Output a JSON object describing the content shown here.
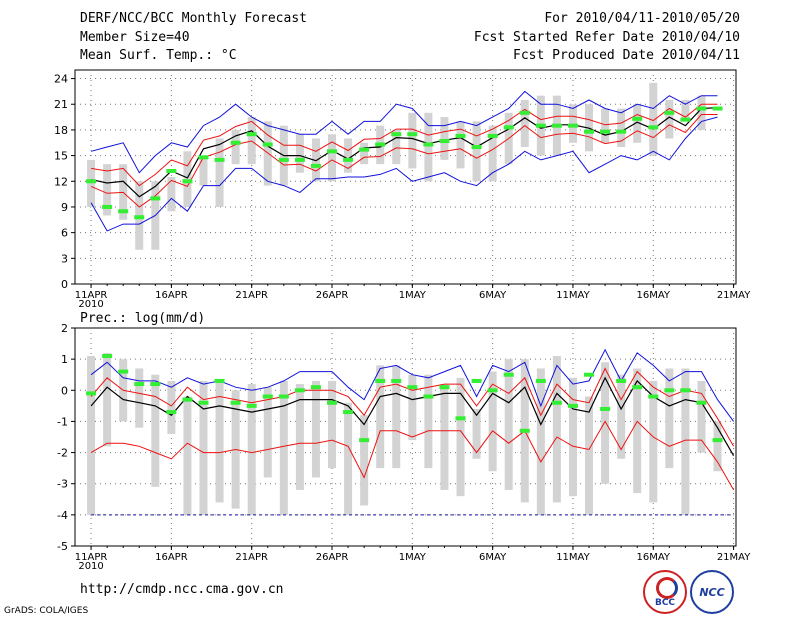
{
  "header": {
    "title": "DERF/NCC/BCC Monthly Forecast",
    "member_size": "Member Size=40",
    "variable": "Mean Surf. Temp.: °C",
    "forecast_period": "For 2010/04/11-2010/05/20",
    "fcst_started": "Fcst Started Refer Date 2010/04/10",
    "fcst_produced": "Fcst Produced Date 2010/04/11"
  },
  "footer": {
    "url": "http://cmdp.ncc.cma.gov.cn",
    "grads": "GrADS: COLA/IGES",
    "logo_bcc": "BCC",
    "logo_ncc": "NCC"
  },
  "colors": {
    "box": "#d3d3d3",
    "mean": "#000000",
    "inner": "#ee1111",
    "outer": "#1111dd",
    "obs": "#33ee33",
    "bottom_line": "#1111aa"
  },
  "chart_data": [
    {
      "type": "line",
      "title": "Mean Surf. Temp.: °C",
      "ylim": [
        0,
        25
      ],
      "yticks": [
        0,
        3,
        6,
        9,
        12,
        15,
        18,
        21,
        24
      ],
      "x_start_day": 0,
      "x_end_day": 40,
      "xtick_days": [
        0,
        5,
        10,
        15,
        20,
        25,
        30,
        35,
        40
      ],
      "xtick_labels": [
        "11APR",
        "16APR",
        "21APR",
        "26APR",
        "1MAY",
        "6MAY",
        "11MAY",
        "16MAY",
        "21MAY"
      ],
      "year_label": "2010",
      "series": {
        "box_top": [
          14.5,
          14,
          14,
          12,
          12,
          12.5,
          15.5,
          15,
          17,
          18,
          19.5,
          19,
          18.5,
          17.5,
          17,
          17.5,
          17,
          16.5,
          18.5,
          18,
          20,
          20,
          19.5,
          19,
          19,
          18.5,
          20,
          21.5,
          22,
          22,
          21,
          21,
          20.5,
          20.5,
          21,
          23.5,
          21.5,
          21.5,
          22
        ],
        "box_bottom": [
          9,
          8,
          7.5,
          4,
          4,
          8.5,
          9,
          11.5,
          9,
          14,
          14,
          11.5,
          11.5,
          13,
          12,
          12,
          13,
          14,
          14,
          14,
          13.5,
          12,
          14.5,
          13.5,
          12,
          12,
          14,
          16,
          15,
          15,
          16.5,
          15.5,
          16.5,
          16,
          16.5,
          15,
          17,
          19,
          18
        ],
        "mean": [
          12.2,
          11.8,
          12,
          10.2,
          11.4,
          13.2,
          12.4,
          15.8,
          16.3,
          17.3,
          17.9,
          16.1,
          15,
          15,
          14.4,
          15.6,
          14.6,
          15.9,
          16,
          17.1,
          17,
          16.4,
          16.8,
          17.1,
          16,
          17.1,
          18.1,
          19.4,
          18.2,
          18.6,
          18.6,
          18.2,
          17.4,
          17.8,
          18.9,
          18.1,
          19.5,
          18.5,
          20.5,
          20.6
        ],
        "inner_up": [
          13.5,
          13.2,
          13.5,
          11.5,
          12.8,
          14.5,
          13.8,
          16.8,
          17.3,
          18.4,
          19,
          17.4,
          16.2,
          16.2,
          15.5,
          16.6,
          15.6,
          16.9,
          17,
          18.1,
          18.1,
          17.4,
          17.8,
          18.1,
          17.3,
          18.1,
          19.1,
          20.4,
          19.2,
          19.6,
          19.6,
          19.2,
          18.6,
          18.8,
          19.8,
          19.1,
          20.5,
          19.5,
          21,
          21
        ],
        "inner_lo": [
          11.4,
          10.6,
          10.7,
          9,
          10.3,
          12.1,
          11.4,
          14.8,
          15.4,
          16.3,
          16.7,
          15.3,
          13.9,
          14,
          13.2,
          14.5,
          13.5,
          14.8,
          14.9,
          15.9,
          15.8,
          15.2,
          15.5,
          15.8,
          14.7,
          15.7,
          17,
          18.5,
          17.1,
          17.5,
          17.6,
          17.2,
          16.4,
          16.7,
          17.9,
          17.1,
          18.6,
          17.7,
          19.8,
          19.8
        ],
        "outer_up": [
          15.5,
          16,
          16.5,
          13,
          15,
          16.5,
          16,
          18.5,
          19.5,
          21,
          19.5,
          18.5,
          18,
          17.5,
          17.5,
          19,
          17.5,
          19,
          19,
          21,
          20.5,
          18.5,
          18.5,
          19,
          18.5,
          19.5,
          20.5,
          22.5,
          21,
          21,
          20.5,
          21.5,
          20.5,
          20,
          21,
          20.5,
          22,
          21,
          22,
          22
        ],
        "outer_lo": [
          9.5,
          6.2,
          7,
          7,
          8,
          10,
          8.5,
          11.5,
          11.5,
          13.5,
          13.5,
          12,
          11.5,
          10.7,
          12.3,
          12.3,
          12.5,
          12.5,
          12.8,
          13.5,
          12,
          12.5,
          13,
          12,
          11.5,
          13,
          14,
          15.5,
          14.5,
          15,
          15.5,
          13,
          14,
          15,
          14.5,
          15.5,
          14.5,
          17,
          19,
          19.5
        ],
        "obs": [
          12,
          9,
          8.5,
          7.8,
          10,
          13.2,
          12,
          14.8,
          14.5,
          16.5,
          17.5,
          16.3,
          14.5,
          14.5,
          13.8,
          15.5,
          14.5,
          15.7,
          16.3,
          17.5,
          17.5,
          16.3,
          16.7,
          17.3,
          16,
          17.3,
          18.3,
          20,
          18.5,
          18.5,
          18.5,
          17.8,
          17.8,
          17.8,
          19.3,
          18.3,
          20,
          19.2,
          20.5,
          20.5
        ]
      }
    },
    {
      "type": "line",
      "title": "Prec.: log(mm/d)",
      "ylim": [
        -5,
        2
      ],
      "yticks": [
        -5,
        -4,
        -3,
        -2,
        -1,
        0,
        1,
        2
      ],
      "x_start_day": 0,
      "x_end_day": 40,
      "xtick_days": [
        0,
        5,
        10,
        15,
        20,
        25,
        30,
        35,
        40
      ],
      "xtick_labels": [
        "11APR",
        "16APR",
        "21APR",
        "26APR",
        "1MAY",
        "6MAY",
        "11MAY",
        "16MAY",
        "21MAY"
      ],
      "year_label": "2010",
      "bottom_line": -4,
      "series": {
        "box_top": [
          1.1,
          1.2,
          1,
          0.7,
          0.5,
          0.3,
          -0.2,
          0.3,
          0.3,
          0,
          0.2,
          0.1,
          0.3,
          0.2,
          0.3,
          0.3,
          -0.4,
          -0.8,
          0.8,
          0.8,
          0.5,
          0.5,
          0.2,
          0.4,
          -0.6,
          0.6,
          1,
          1,
          0.7,
          1.1,
          0.4,
          -0.2,
          0.9,
          0.5,
          0.7,
          0.3,
          0.7,
          0.7,
          0.3,
          -1
        ],
        "box_bottom": [
          -4,
          -1.8,
          -1,
          -1.2,
          -3.1,
          -1.4,
          -4,
          -4,
          -3.6,
          -3.8,
          -4,
          -2.8,
          -4,
          -3.2,
          -2.8,
          -2.5,
          -4,
          -3.7,
          -2.5,
          -2.5,
          -1.6,
          -2.5,
          -3.2,
          -3.4,
          -2.2,
          -2.6,
          -3.2,
          -3.6,
          -4,
          -3.6,
          -3.4,
          -4,
          -3,
          -2.2,
          -3.3,
          -3.6,
          -2.5,
          -4,
          -2,
          -2.6
        ],
        "mean": [
          -0.5,
          0.1,
          -0.3,
          -0.4,
          -0.5,
          -0.8,
          -0.2,
          -0.6,
          -0.5,
          -0.6,
          -0.7,
          -0.6,
          -0.5,
          -0.3,
          -0.3,
          -0.3,
          -0.5,
          -1.1,
          -0.2,
          -0.1,
          -0.3,
          -0.2,
          -0.1,
          -0.1,
          -0.8,
          -0.1,
          -0.4,
          0.1,
          -1.1,
          -0.1,
          -0.6,
          -0.7,
          0.4,
          -0.6,
          0.3,
          -0.2,
          -0.5,
          -0.3,
          -0.4,
          -1.2,
          -2.1
        ],
        "inner_up": [
          -0.2,
          0.4,
          0,
          -0.1,
          -0.2,
          -0.5,
          0.1,
          -0.3,
          -0.2,
          -0.3,
          -0.4,
          -0.3,
          -0.2,
          0,
          0,
          0,
          -0.2,
          -0.8,
          0.1,
          0.2,
          0,
          0.1,
          0.2,
          0.2,
          -0.5,
          0.2,
          -0.1,
          0.4,
          -0.8,
          0.2,
          -0.3,
          -0.4,
          0.7,
          -0.3,
          0.6,
          0.1,
          -0.2,
          0,
          -0.1,
          -0.9,
          -1.8
        ],
        "inner_lo": [
          -2,
          -1.7,
          -1.7,
          -1.8,
          -2,
          -2.2,
          -1.7,
          -2,
          -2,
          -1.9,
          -2,
          -1.9,
          -1.8,
          -1.7,
          -1.7,
          -1.6,
          -1.8,
          -2.8,
          -1.3,
          -1.3,
          -1.5,
          -1.3,
          -1.3,
          -1.3,
          -2,
          -1.3,
          -1.7,
          -1.3,
          -2.3,
          -1.5,
          -1.8,
          -1.9,
          -1,
          -1.9,
          -1,
          -1.5,
          -1.8,
          -1.6,
          -1.6,
          -2.3,
          -3.2
        ],
        "outer_up": [
          0.5,
          0.9,
          0.4,
          0.3,
          0.3,
          0.1,
          0.4,
          0.2,
          0.3,
          0.1,
          0,
          0.1,
          0.3,
          0.6,
          0.6,
          0.6,
          0.1,
          -0.3,
          0.7,
          0.8,
          0.5,
          0.4,
          0.6,
          0.8,
          -0.2,
          0.8,
          0.6,
          0.9,
          -0.5,
          0.8,
          0.2,
          0.3,
          1.3,
          0.3,
          1.2,
          0.8,
          0.3,
          0.6,
          0.6,
          -0.3,
          -1
        ],
        "outer_lo": [
          -4,
          -4,
          -4,
          -4,
          -4,
          -4,
          -4,
          -4,
          -4,
          -4,
          -4,
          -4,
          -4,
          -4,
          -4,
          -4,
          -4,
          -4,
          -4,
          -4,
          -4,
          -4,
          -4,
          -4,
          -4,
          -4,
          -4,
          -4,
          -4,
          -4,
          -4,
          -4,
          -4,
          -4,
          -4,
          -4,
          -4,
          -4,
          -4,
          -4,
          -4
        ],
        "obs": [
          -0.1,
          1.1,
          0.6,
          0.2,
          0.2,
          -0.7,
          -0.3,
          -0.4,
          0.3,
          -0.4,
          -0.5,
          -0.2,
          -0.2,
          0,
          0.1,
          -0.4,
          -0.7,
          -1.6,
          0.3,
          0.3,
          0.1,
          -0.2,
          0.1,
          -0.9,
          0.3,
          0,
          0.5,
          -1.3,
          0.3,
          -0.4,
          -0.5,
          0.5,
          -0.6,
          0.3,
          0.1,
          -0.2,
          0,
          0,
          -0.4,
          -1.6
        ]
      }
    }
  ]
}
